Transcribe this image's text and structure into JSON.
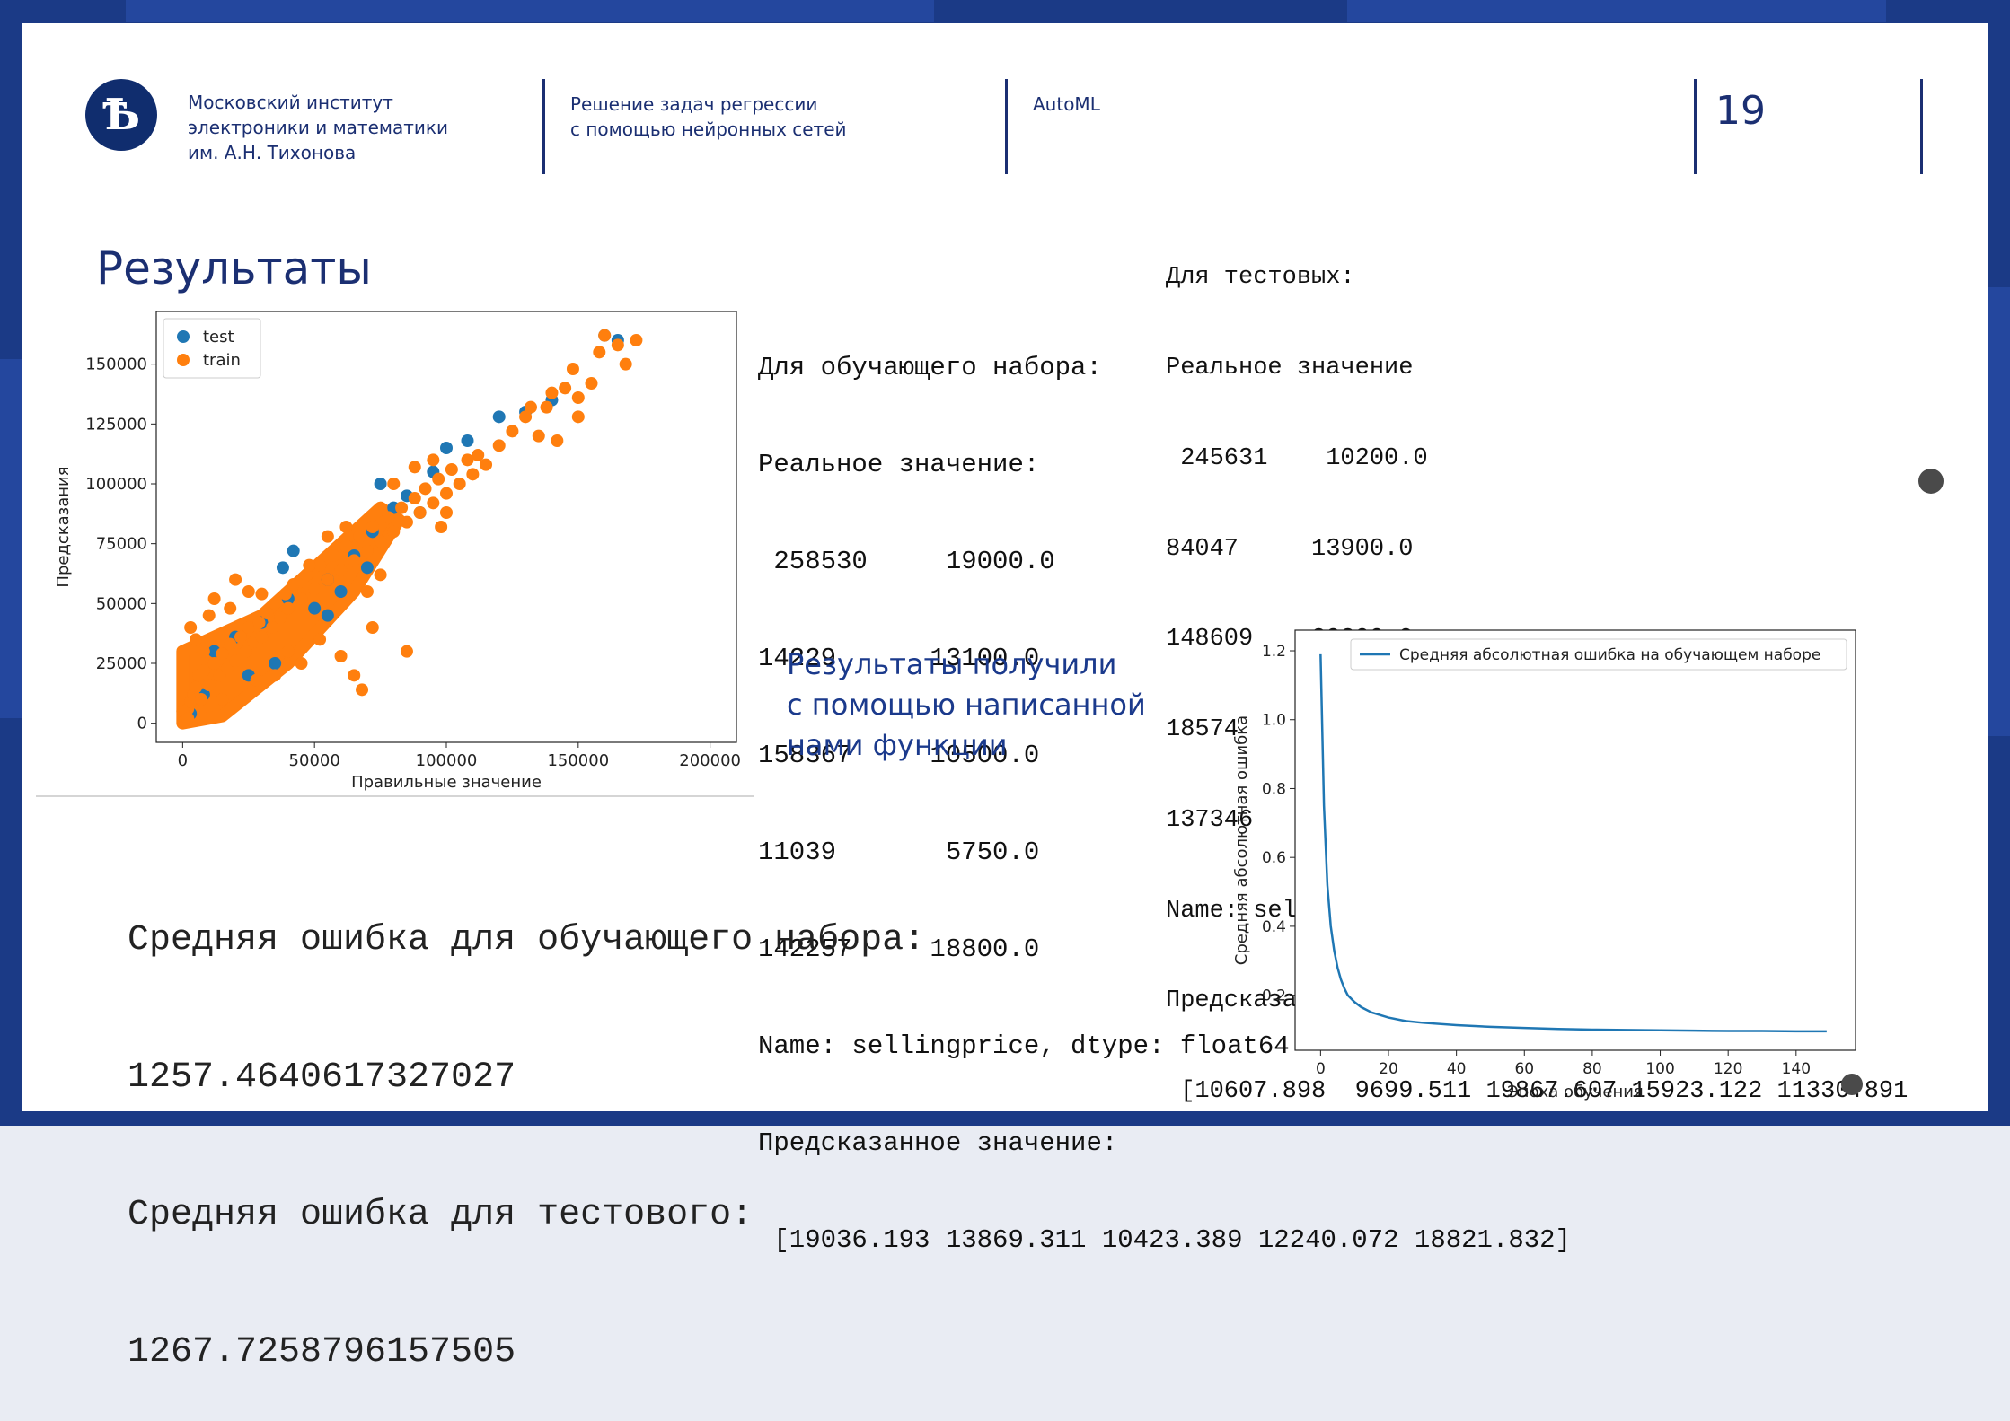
{
  "header": {
    "institute": "Московский институт\nэлектроники и математики\nим. А.Н. Тихонова",
    "course": "Решение задач регрессии\nс помощью нейронных сетей",
    "topic": "AutoML",
    "page_number": "19"
  },
  "slide_title": "Результаты",
  "train_output": {
    "lines": [
      "Для обучающего набора:",
      "Реальное значение:",
      " 258530     19000.0",
      "14229      13100.0",
      "158367     10500.0",
      "11039       5750.0",
      "142257     18800.0",
      "Name: sellingprice, dtype: float64",
      "Предсказанное значение:",
      " [19036.193 13869.311 10423.389 12240.072 18821.832]"
    ]
  },
  "test_output": {
    "lines": [
      "Для тестовых:",
      "Реальное значение",
      " 245631    10200.0",
      "84047     13900.0",
      "148609    20300.0",
      "18574     15400.0",
      "137346    12900.0",
      "Name: sellingprice, dtype: float64",
      "Предсказанное значение",
      " [10607.898  9699.511 19867.607 15923.122 11330.891"
    ]
  },
  "note": "Результаты получили\nс помощью написанной\nнами функции",
  "errors": {
    "lines": [
      "Средняя ошибка для обучающего набора:",
      "1257.4640617327027",
      "Средняя ошибка для тестового:",
      "1267.7258796157505"
    ]
  },
  "chart_data": [
    {
      "type": "scatter",
      "xlabel": "Правильные значение",
      "ylabel": "Предсказания",
      "xlim": [
        -10000,
        210000
      ],
      "ylim": [
        -8000,
        172000
      ],
      "xticks": [
        0,
        50000,
        100000,
        150000,
        200000
      ],
      "xtick_labels": [
        "0",
        "50000",
        "100000",
        "150000",
        "200000"
      ],
      "yticks": [
        0,
        25000,
        50000,
        75000,
        100000,
        125000,
        150000
      ],
      "ytick_labels": [
        "0",
        "25000",
        "50000",
        "75000",
        "100000",
        "125000",
        "150000"
      ],
      "legend": "top-left",
      "series": [
        {
          "name": "test",
          "color": "#1f77b4",
          "points": [
            [
              3000,
              4000
            ],
            [
              8000,
              12000
            ],
            [
              12000,
              30000
            ],
            [
              20000,
              36000
            ],
            [
              30000,
              42000
            ],
            [
              40000,
              52000
            ],
            [
              42000,
              72000
            ],
            [
              55000,
              60000
            ],
            [
              65000,
              70000
            ],
            [
              72000,
              80000
            ],
            [
              80000,
              90000
            ],
            [
              85000,
              95000
            ],
            [
              95000,
              105000
            ],
            [
              100000,
              115000
            ],
            [
              108000,
              118000
            ],
            [
              120000,
              128000
            ],
            [
              130000,
              130000
            ],
            [
              140000,
              135000
            ],
            [
              160000,
              162000
            ],
            [
              165000,
              160000
            ],
            [
              25000,
              20000
            ],
            [
              35000,
              25000
            ],
            [
              50000,
              48000
            ],
            [
              60000,
              55000
            ],
            [
              70000,
              65000
            ],
            [
              38000,
              65000
            ],
            [
              55000,
              45000
            ],
            [
              75000,
              100000
            ],
            [
              90000,
              88000
            ]
          ]
        },
        {
          "name": "train",
          "color": "#ff7f0e",
          "points": [
            [
              500,
              1000
            ],
            [
              1000,
              3000
            ],
            [
              2000,
              6000
            ],
            [
              3000,
              9000
            ],
            [
              4000,
              12000
            ],
            [
              5000,
              15000
            ],
            [
              6000,
              20000
            ],
            [
              7000,
              10000
            ],
            [
              8000,
              22000
            ],
            [
              10000,
              16000
            ],
            [
              12000,
              25000
            ],
            [
              14000,
              20000
            ],
            [
              15000,
              29000
            ],
            [
              17000,
              23000
            ],
            [
              18000,
              33000
            ],
            [
              20000,
              26000
            ],
            [
              22000,
              36000
            ],
            [
              24000,
              30000
            ],
            [
              25000,
              40000
            ],
            [
              27000,
              34000
            ],
            [
              29000,
              42000
            ],
            [
              30000,
              36000
            ],
            [
              32000,
              46000
            ],
            [
              34000,
              40000
            ],
            [
              35000,
              50000
            ],
            [
              37000,
              44000
            ],
            [
              39000,
              54000
            ],
            [
              40000,
              48000
            ],
            [
              42000,
              58000
            ],
            [
              45000,
              52000
            ],
            [
              47000,
              62000
            ],
            [
              50000,
              56000
            ],
            [
              52000,
              66000
            ],
            [
              55000,
              60000
            ],
            [
              57000,
              70000
            ],
            [
              60000,
              64000
            ],
            [
              62000,
              74000
            ],
            [
              65000,
              68000
            ],
            [
              67000,
              78000
            ],
            [
              70000,
              72000
            ],
            [
              72000,
              82000
            ],
            [
              75000,
              76000
            ],
            [
              78000,
              86000
            ],
            [
              80000,
              80000
            ],
            [
              83000,
              90000
            ],
            [
              85000,
              84000
            ],
            [
              88000,
              94000
            ],
            [
              90000,
              88000
            ],
            [
              92000,
              98000
            ],
            [
              95000,
              92000
            ],
            [
              97000,
              102000
            ],
            [
              100000,
              96000
            ],
            [
              102000,
              106000
            ],
            [
              105000,
              100000
            ],
            [
              108000,
              110000
            ],
            [
              110000,
              104000
            ],
            [
              112000,
              112000
            ],
            [
              115000,
              108000
            ],
            [
              120000,
              116000
            ],
            [
              125000,
              122000
            ],
            [
              130000,
              128000
            ],
            [
              135000,
              120000
            ],
            [
              138000,
              132000
            ],
            [
              140000,
              138000
            ],
            [
              145000,
              140000
            ],
            [
              150000,
              136000
            ],
            [
              148000,
              148000
            ],
            [
              155000,
              142000
            ],
            [
              158000,
              155000
            ],
            [
              160000,
              162000
            ],
            [
              165000,
              158000
            ],
            [
              168000,
              150000
            ],
            [
              172000,
              160000
            ],
            [
              150000,
              128000
            ],
            [
              142000,
              118000
            ],
            [
              132000,
              132000
            ],
            [
              100000,
              88000
            ],
            [
              98000,
              82000
            ],
            [
              70000,
              55000
            ],
            [
              75000,
              62000
            ],
            [
              85000,
              30000
            ],
            [
              72000,
              40000
            ],
            [
              60000,
              28000
            ],
            [
              52000,
              35000
            ],
            [
              65000,
              20000
            ],
            [
              68000,
              14000
            ],
            [
              12000,
              52000
            ],
            [
              18000,
              48000
            ],
            [
              25000,
              55000
            ],
            [
              30000,
              54000
            ],
            [
              20000,
              60000
            ],
            [
              48000,
              66000
            ],
            [
              55000,
              78000
            ],
            [
              62000,
              82000
            ],
            [
              40000,
              30000
            ],
            [
              45000,
              25000
            ],
            [
              8000,
              30000
            ],
            [
              5000,
              35000
            ],
            [
              3000,
              40000
            ],
            [
              10000,
              45000
            ],
            [
              35000,
              20000
            ],
            [
              28000,
              18000
            ],
            [
              0,
              5000
            ],
            [
              2000,
              2000
            ],
            [
              15000,
              10000
            ],
            [
              88000,
              107000
            ],
            [
              95000,
              110000
            ],
            [
              80000,
              100000
            ]
          ]
        }
      ]
    },
    {
      "type": "line",
      "xlabel": "Эпоха обучения",
      "ylabel": "Средняя абсолютная ошибка",
      "xlim": [
        -7.5,
        157.5
      ],
      "ylim": [
        0.04,
        1.26
      ],
      "xticks": [
        0,
        20,
        40,
        60,
        80,
        100,
        120,
        140
      ],
      "xtick_labels": [
        "0",
        "20",
        "40",
        "60",
        "80",
        "100",
        "120",
        "140"
      ],
      "yticks": [
        0.2,
        0.4,
        0.6,
        0.8,
        1.0,
        1.2
      ],
      "ytick_labels": [
        "0.2",
        "0.4",
        "0.6",
        "0.8",
        "1.0",
        "1.2"
      ],
      "legend": "top-right",
      "series": [
        {
          "name": "Средняя абсолютная ошибка на обучающем наборе",
          "color": "#1f77b4",
          "x": [
            0,
            1,
            2,
            3,
            4,
            5,
            6,
            7,
            8,
            10,
            12,
            15,
            20,
            25,
            30,
            40,
            50,
            60,
            70,
            80,
            90,
            100,
            110,
            120,
            130,
            140,
            149
          ],
          "y": [
            1.19,
            0.75,
            0.52,
            0.4,
            0.33,
            0.28,
            0.245,
            0.22,
            0.2,
            0.18,
            0.165,
            0.15,
            0.135,
            0.125,
            0.12,
            0.113,
            0.108,
            0.105,
            0.102,
            0.1,
            0.099,
            0.098,
            0.097,
            0.096,
            0.096,
            0.095,
            0.095
          ]
        }
      ]
    }
  ]
}
